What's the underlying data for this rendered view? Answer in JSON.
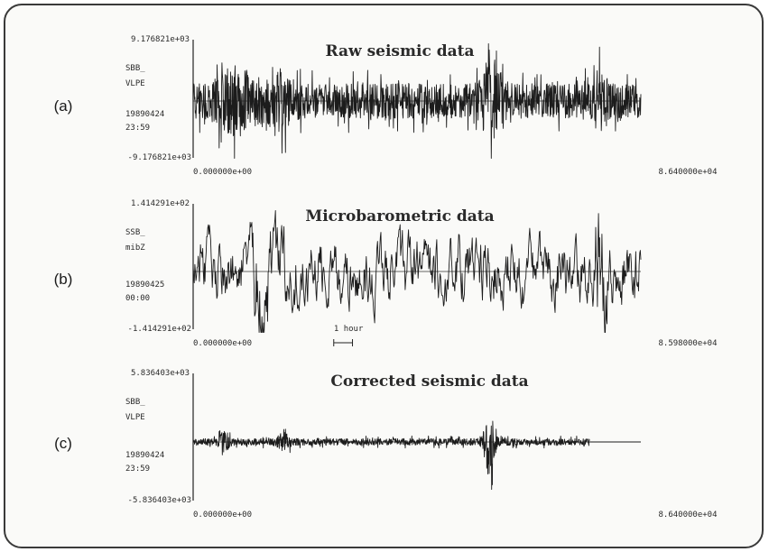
{
  "chart_data": [
    {
      "panel": "(a)",
      "type": "line",
      "title": "Raw seismic data",
      "station": "SBB_",
      "channel": "VLPE",
      "date": "19890424",
      "time": "23:59",
      "ymax_label": "9.176821e+03",
      "ymin_label": "-9.176821e+03",
      "ylim": [
        -9176.821,
        9176.821
      ],
      "xmin_label": "0.000000e+00",
      "xmax_label": "8.640000e+04",
      "xlim": [
        0,
        86400
      ],
      "signal_end": 86400,
      "amplitude": 0.55,
      "bursts": [
        {
          "x": 8000,
          "amp": 0.65,
          "width": 3500
        },
        {
          "x": 16000,
          "amp": 0.55,
          "width": 3000
        },
        {
          "x": 57500,
          "amp": 0.9,
          "width": 1800
        },
        {
          "x": 78500,
          "amp": 0.6,
          "width": 1500
        }
      ]
    },
    {
      "panel": "(b)",
      "type": "line",
      "title": "Microbarometric data",
      "station": "SSB_",
      "channel": "mibZ",
      "date": "19890425",
      "time": "00:00",
      "ymax_label": "1.414291e+02",
      "ymin_label": "-1.414291e+02",
      "ylim": [
        -141.4291,
        141.4291
      ],
      "xmin_label": "0.000000e+00",
      "xmax_label": "8.598000e+04",
      "xlim": [
        0,
        85980
      ],
      "signal_end": 85980,
      "amplitude": 0.45,
      "bursts": [
        {
          "x": 78000,
          "amp": 0.9,
          "width": 1200
        },
        {
          "x": 14000,
          "amp": 0.5,
          "width": 3000
        }
      ],
      "scale_bar": {
        "label": "1 hour",
        "x": 27000,
        "length": 3600
      }
    },
    {
      "panel": "(c)",
      "type": "line",
      "title": "Corrected seismic data",
      "station": "SBB_",
      "channel": "VLPE",
      "date": "19890424",
      "time": "23:59",
      "ymax_label": "5.836403e+03",
      "ymin_label": "-5.836403e+03",
      "ylim": [
        -5836.403,
        5836.403
      ],
      "xmin_label": "0.000000e+00",
      "xmax_label": "8.640000e+04",
      "xlim": [
        0,
        86400
      ],
      "signal_end": 76500,
      "amplitude": 0.1,
      "bursts": [
        {
          "x": 57200,
          "amp": 1.05,
          "width": 1000
        },
        {
          "x": 6000,
          "amp": 0.25,
          "width": 1000
        },
        {
          "x": 17500,
          "amp": 0.2,
          "width": 1200
        }
      ]
    }
  ]
}
